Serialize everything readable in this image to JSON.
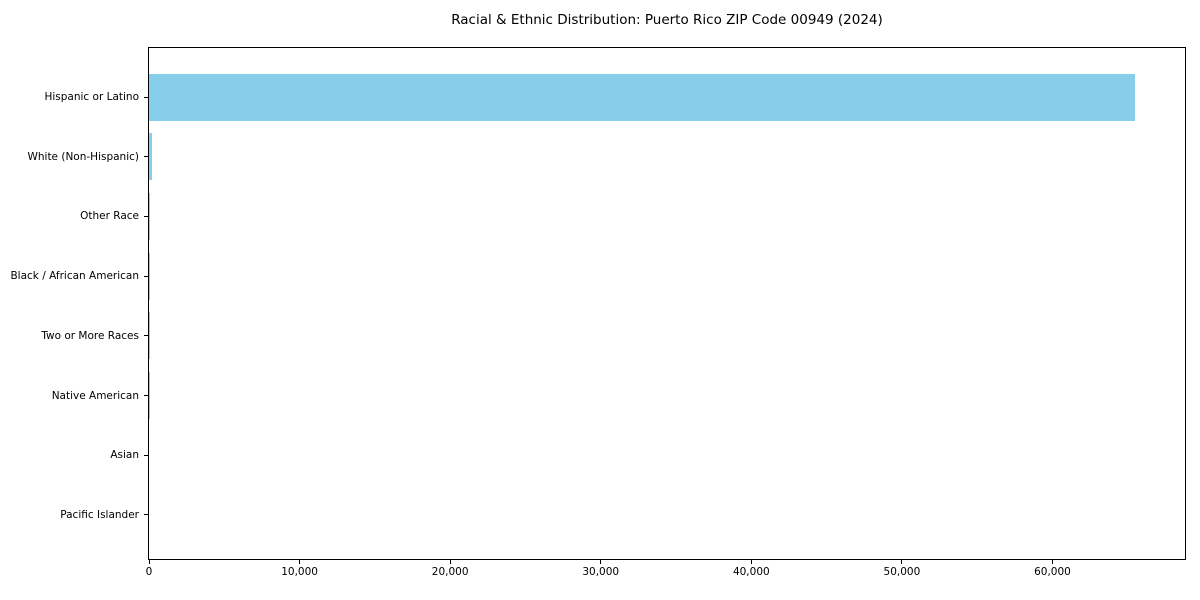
{
  "chart_data": {
    "type": "bar",
    "orientation": "horizontal",
    "title": "Racial & Ethnic Distribution: Puerto Rico ZIP Code 00949 (2024)",
    "categories": [
      "Hispanic or Latino",
      "White (Non-Hispanic)",
      "Other Race",
      "Black / African American",
      "Two or More Races",
      "Native American",
      "Asian",
      "Pacific Islander"
    ],
    "values": [
      65500,
      230,
      90,
      40,
      25,
      10,
      5,
      0
    ],
    "xlabel": "",
    "ylabel": "",
    "xlim": [
      0,
      68800
    ],
    "x_ticks": [
      0,
      10000,
      20000,
      30000,
      40000,
      50000,
      60000
    ],
    "x_tick_labels": [
      "0",
      "10,000",
      "20,000",
      "30,000",
      "40,000",
      "50,000",
      "60,000"
    ],
    "bar_color": "#87CEEB",
    "axis_color": "#000000",
    "background_color": "#ffffff",
    "grid": false,
    "legend": null
  }
}
